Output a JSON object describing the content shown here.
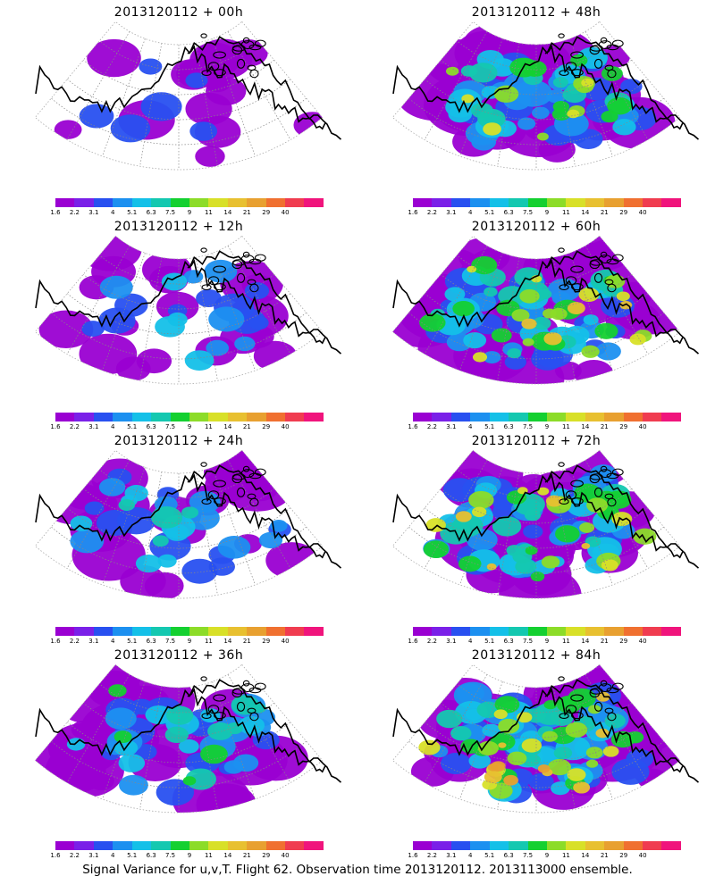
{
  "panels": [
    {
      "title": "2013120112 + 00h",
      "level": 0.15
    },
    {
      "title": "2013120112 + 48h",
      "level": 0.75
    },
    {
      "title": "2013120112 + 12h",
      "level": 0.3
    },
    {
      "title": "2013120112 + 60h",
      "level": 0.85
    },
    {
      "title": "2013120112 + 24h",
      "level": 0.45
    },
    {
      "title": "2013120112 + 72h",
      "level": 0.9
    },
    {
      "title": "2013120112 + 36h",
      "level": 0.6
    },
    {
      "title": "2013120112 + 84h",
      "level": 1.0
    }
  ],
  "colorbar": {
    "ticks": [
      "1.6",
      "2.2",
      "3.1",
      "4",
      "5.1",
      "6.3",
      "7.5",
      "9",
      "11",
      "14",
      "21",
      "29",
      "40"
    ],
    "colors": [
      "#9a00d2",
      "#7a20e8",
      "#2850f0",
      "#1c90f0",
      "#14c0e8",
      "#14c8b0",
      "#14d030",
      "#8cdc28",
      "#d8e028",
      "#e8c030",
      "#e8a030",
      "#f07030",
      "#f03c50",
      "#f0147c"
    ]
  },
  "footer": "Signal Variance for u,v,T. Flight 62. Observation time 2013120112. 2013113000 ensemble."
}
